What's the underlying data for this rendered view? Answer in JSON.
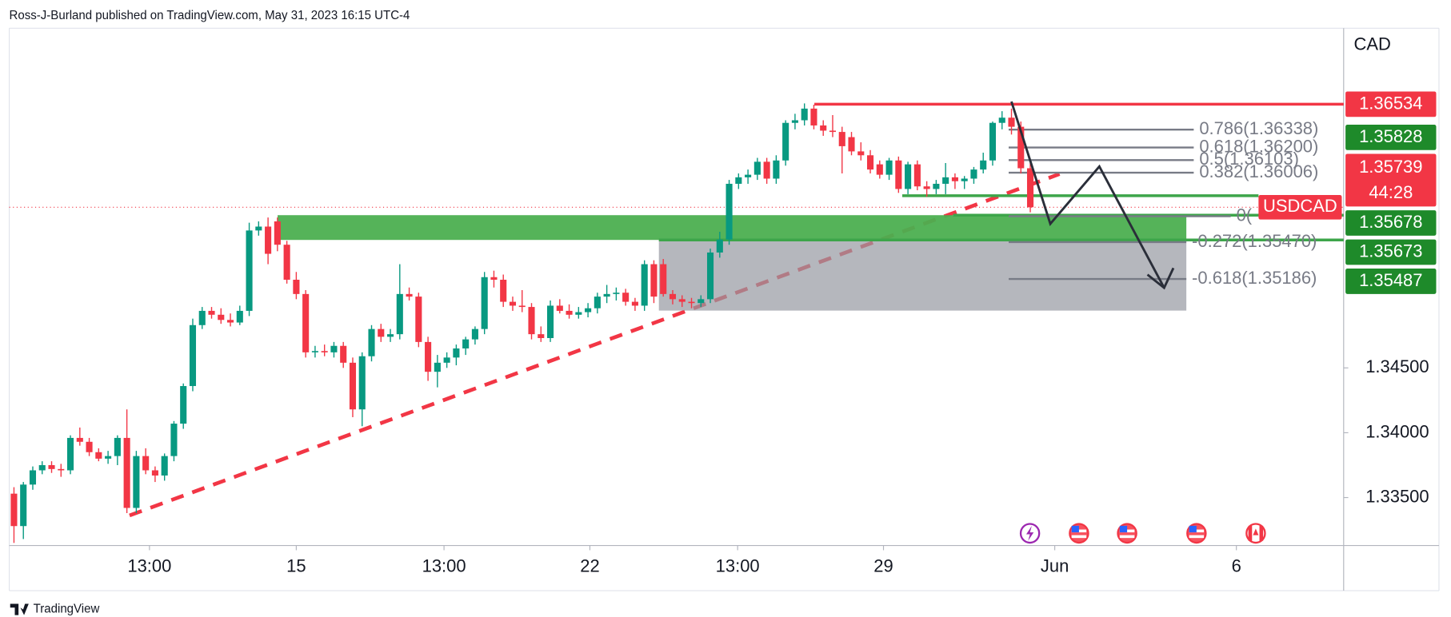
{
  "header": {
    "attribution": "Ross-J-Burland published on TradingView.com, May 31, 2023 16:15 UTC-4",
    "brand": "TradingView"
  },
  "chart_data": {
    "type": "candlestick",
    "currency": "CAD",
    "up_color": "#089981",
    "down_color": "#f23645",
    "xlim": [
      -0.5,
      141.3
    ],
    "xticks": [
      {
        "value": 14.4,
        "label": "13:00"
      },
      {
        "value": 30.0,
        "label": "15"
      },
      {
        "value": 45.7,
        "label": "13:00"
      },
      {
        "value": 61.2,
        "label": "22"
      },
      {
        "value": 76.9,
        "label": "13:00"
      },
      {
        "value": 92.4,
        "label": "29"
      },
      {
        "value": 110.6,
        "label": "Jun"
      },
      {
        "value": 129.9,
        "label": "6"
      }
    ],
    "ylim": [
      1.3313,
      1.3712
    ],
    "yticks": [
      {
        "value": 1.335,
        "label": "1.33500"
      },
      {
        "value": 1.34,
        "label": "1.34000"
      },
      {
        "value": 1.345,
        "label": "1.34500"
      }
    ],
    "candles": [
      [
        1.3353,
        1.3358,
        1.3315,
        1.3328
      ],
      [
        1.3328,
        1.3362,
        1.3318,
        1.336
      ],
      [
        1.336,
        1.3374,
        1.3356,
        1.3371
      ],
      [
        1.3371,
        1.3378,
        1.3368,
        1.3375
      ],
      [
        1.3375,
        1.3378,
        1.3369,
        1.3372
      ],
      [
        1.3372,
        1.3376,
        1.3366,
        1.3371
      ],
      [
        1.3371,
        1.3398,
        1.3368,
        1.3396
      ],
      [
        1.3396,
        1.3404,
        1.339,
        1.3393
      ],
      [
        1.3393,
        1.3396,
        1.3382,
        1.3385
      ],
      [
        1.3385,
        1.3388,
        1.3378,
        1.338
      ],
      [
        1.338,
        1.3386,
        1.3376,
        1.3382
      ],
      [
        1.3382,
        1.3398,
        1.3375,
        1.3396
      ],
      [
        1.3396,
        1.3418,
        1.3338,
        1.3342
      ],
      [
        1.3342,
        1.3386,
        1.3338,
        1.3382
      ],
      [
        1.3382,
        1.3388,
        1.3368,
        1.3371
      ],
      [
        1.3371,
        1.3374,
        1.3362,
        1.3367
      ],
      [
        1.3367,
        1.3384,
        1.3363,
        1.3382
      ],
      [
        1.3382,
        1.3409,
        1.3378,
        1.3407
      ],
      [
        1.3407,
        1.3438,
        1.3403,
        1.3436
      ],
      [
        1.3436,
        1.3488,
        1.3432,
        1.3483
      ],
      [
        1.3483,
        1.3497,
        1.348,
        1.3494
      ],
      [
        1.3494,
        1.3497,
        1.3488,
        1.3491
      ],
      [
        1.3491,
        1.3496,
        1.3484,
        1.3487
      ],
      [
        1.3487,
        1.3492,
        1.3482,
        1.3485
      ],
      [
        1.3485,
        1.3498,
        1.3483,
        1.3494
      ],
      [
        1.3494,
        1.3562,
        1.349,
        1.3556
      ],
      [
        1.3556,
        1.3563,
        1.3552,
        1.3559
      ],
      [
        1.3559,
        1.3566,
        1.353,
        1.3538
      ],
      [
        1.3563,
        1.3566,
        1.354,
        1.3545
      ],
      [
        1.3545,
        1.3548,
        1.3515,
        1.3518
      ],
      [
        1.3518,
        1.3524,
        1.3503,
        1.3507
      ],
      [
        1.3507,
        1.351,
        1.3458,
        1.3462
      ],
      [
        1.3462,
        1.3467,
        1.3458,
        1.3463
      ],
      [
        1.3463,
        1.3468,
        1.3459,
        1.3462
      ],
      [
        1.3462,
        1.347,
        1.3458,
        1.3467
      ],
      [
        1.3467,
        1.347,
        1.345,
        1.3454
      ],
      [
        1.3454,
        1.3458,
        1.3412,
        1.3418
      ],
      [
        1.3418,
        1.3462,
        1.3405,
        1.3459
      ],
      [
        1.3459,
        1.3483,
        1.3455,
        1.348
      ],
      [
        1.348,
        1.3484,
        1.347,
        1.3474
      ],
      [
        1.3474,
        1.348,
        1.347,
        1.3476
      ],
      [
        1.3476,
        1.353,
        1.3472,
        1.3507
      ],
      [
        1.3507,
        1.3512,
        1.3502,
        1.3505
      ],
      [
        1.3505,
        1.3508,
        1.3466,
        1.347
      ],
      [
        1.347,
        1.3474,
        1.344,
        1.3447
      ],
      [
        1.3447,
        1.346,
        1.3435,
        1.3454
      ],
      [
        1.3454,
        1.3462,
        1.345,
        1.3458
      ],
      [
        1.3458,
        1.3468,
        1.3452,
        1.3465
      ],
      [
        1.3465,
        1.3474,
        1.346,
        1.3472
      ],
      [
        1.3472,
        1.3482,
        1.3468,
        1.348
      ],
      [
        1.348,
        1.3524,
        1.3476,
        1.352
      ],
      [
        1.352,
        1.3525,
        1.3512,
        1.3518
      ],
      [
        1.3518,
        1.3522,
        1.3497,
        1.3501
      ],
      [
        1.3501,
        1.3505,
        1.3494,
        1.3498
      ],
      [
        1.3498,
        1.351,
        1.3493,
        1.3497
      ],
      [
        1.3497,
        1.35,
        1.3472,
        1.3476
      ],
      [
        1.3476,
        1.3482,
        1.347,
        1.3473
      ],
      [
        1.3473,
        1.3502,
        1.347,
        1.3498
      ],
      [
        1.3498,
        1.3503,
        1.3492,
        1.3494
      ],
      [
        1.3494,
        1.3499,
        1.3488,
        1.3491
      ],
      [
        1.3491,
        1.3497,
        1.3488,
        1.3493
      ],
      [
        1.3493,
        1.35,
        1.3489,
        1.3496
      ],
      [
        1.3496,
        1.3508,
        1.3492,
        1.3505
      ],
      [
        1.3505,
        1.3514,
        1.35,
        1.3507
      ],
      [
        1.3507,
        1.3512,
        1.3502,
        1.3508
      ],
      [
        1.3508,
        1.3511,
        1.3498,
        1.3501
      ],
      [
        1.3501,
        1.3504,
        1.3494,
        1.3498
      ],
      [
        1.3498,
        1.3533,
        1.3494,
        1.353
      ],
      [
        1.353,
        1.3533,
        1.35,
        1.3505
      ],
      [
        1.353,
        1.3534,
        1.3505,
        1.3507
      ],
      [
        1.3507,
        1.351,
        1.3499,
        1.3503
      ],
      [
        1.3503,
        1.3506,
        1.3497,
        1.3501
      ],
      [
        1.3501,
        1.3504,
        1.3496,
        1.35
      ],
      [
        1.35,
        1.3506,
        1.3497,
        1.3503
      ],
      [
        1.3503,
        1.3542,
        1.35,
        1.3539
      ],
      [
        1.3539,
        1.3555,
        1.3535,
        1.3549
      ],
      [
        1.3549,
        1.3595,
        1.3545,
        1.3592
      ],
      [
        1.3592,
        1.36,
        1.3588,
        1.3597
      ],
      [
        1.3597,
        1.3603,
        1.3592,
        1.3599
      ],
      [
        1.3599,
        1.3612,
        1.3595,
        1.3609
      ],
      [
        1.3609,
        1.3612,
        1.3592,
        1.3596
      ],
      [
        1.3596,
        1.3614,
        1.3592,
        1.361
      ],
      [
        1.361,
        1.3641,
        1.3606,
        1.3639
      ],
      [
        1.3639,
        1.3646,
        1.3634,
        1.3641
      ],
      [
        1.3641,
        1.3654,
        1.3637,
        1.365
      ],
      [
        1.365,
        1.3653,
        1.3634,
        1.3637
      ],
      [
        1.3637,
        1.3641,
        1.3629,
        1.3633
      ],
      [
        1.3633,
        1.3645,
        1.3628,
        1.3632
      ],
      [
        1.3632,
        1.3636,
        1.36,
        1.3621
      ],
      [
        1.3628,
        1.3632,
        1.3614,
        1.3617
      ],
      [
        1.3617,
        1.3624,
        1.361,
        1.3614
      ],
      [
        1.3614,
        1.3618,
        1.36,
        1.3603
      ],
      [
        1.3607,
        1.361,
        1.3596,
        1.3599
      ],
      [
        1.3599,
        1.3612,
        1.3595,
        1.361
      ],
      [
        1.361,
        1.3613,
        1.3585,
        1.3588
      ],
      [
        1.3588,
        1.3609,
        1.3584,
        1.3607
      ],
      [
        1.3607,
        1.361,
        1.3587,
        1.359
      ],
      [
        1.359,
        1.3594,
        1.3582,
        1.3588
      ],
      [
        1.3588,
        1.3595,
        1.3584,
        1.3592
      ],
      [
        1.3592,
        1.3608,
        1.3584,
        1.3597
      ],
      [
        1.3597,
        1.36,
        1.3588,
        1.3594
      ],
      [
        1.3594,
        1.3598,
        1.3588,
        1.3596
      ],
      [
        1.3596,
        1.3605,
        1.3592,
        1.3603
      ],
      [
        1.3603,
        1.3616,
        1.36,
        1.361
      ],
      [
        1.361,
        1.364,
        1.3606,
        1.3639
      ],
      [
        1.3639,
        1.3648,
        1.3634,
        1.3643
      ],
      [
        1.3643,
        1.365,
        1.363,
        1.3636
      ],
      [
        1.3636,
        1.364,
        1.36,
        1.3604
      ],
      [
        1.3604,
        1.3608,
        1.357,
        1.35739
      ]
    ],
    "current_price": {
      "symbol": "USDCAD",
      "value": 1.35739,
      "label": "1.35739",
      "countdown": "44:28",
      "color": "#f23645"
    },
    "price_labels": [
      {
        "value": 1.36534,
        "label": "1.36534",
        "color": "#f23645"
      },
      {
        "value": 1.35828,
        "label": "1.35828",
        "color": "#1e8a2a"
      },
      {
        "value": 1.35678,
        "label": "1.35678",
        "color": "#1e8a2a"
      },
      {
        "value": 1.35673,
        "label": "1.35673",
        "color": "#1e8a2a"
      },
      {
        "value": 1.35487,
        "label": "1.35487",
        "color": "#1e8a2a"
      }
    ],
    "fib_color": "#787b86",
    "fib_levels": [
      {
        "value": 1.36338,
        "label": "0.786(1.36338)"
      },
      {
        "value": 1.362,
        "label": "0.618(1.36200)"
      },
      {
        "value": 1.36103,
        "label": "0.5(1.36103)"
      },
      {
        "value": 1.36006,
        "label": "0.382(1.36006)"
      },
      {
        "value": 1.3567,
        "label": "0("
      },
      {
        "value": 1.3547,
        "label": "-0.272(1.35470)"
      },
      {
        "value": 1.35186,
        "label": "-0.618(1.35186)"
      }
    ],
    "zones": [
      {
        "from": 1.34942,
        "to": 1.35487,
        "color": "#9598a1"
      },
      {
        "from": 1.35487,
        "to": 1.35678,
        "color": "#4caf50"
      }
    ]
  }
}
